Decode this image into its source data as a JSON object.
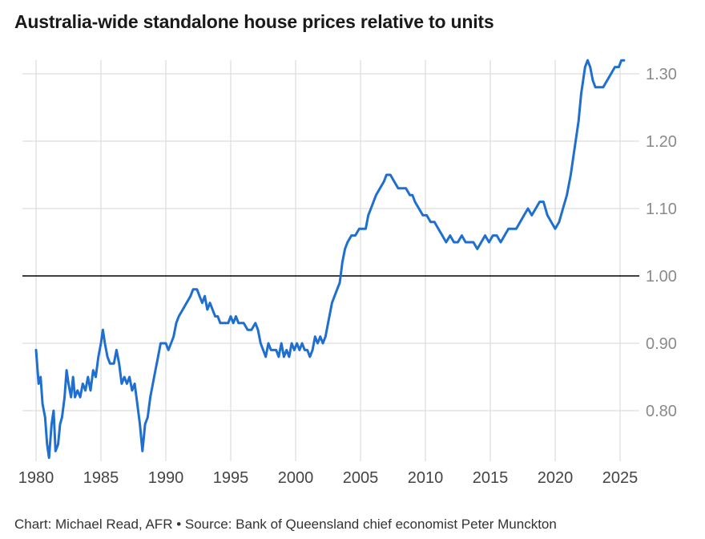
{
  "title": "Australia-wide standalone house prices relative to units",
  "footer": "Chart: Michael Read, AFR • Source: Bank of Queensland chief economist Peter Munckton",
  "colors": {
    "line": "#1e6fd0",
    "grid": "#dddddd",
    "reference": "#000000"
  },
  "chart_data": {
    "type": "line",
    "title": "Australia-wide standalone house prices relative to units",
    "xlim": [
      1979.5,
      2026.5
    ],
    "ylim": [
      0.73,
      1.335
    ],
    "x_ticks": [
      1980,
      1985,
      1990,
      1995,
      2000,
      2005,
      2010,
      2015,
      2020,
      2025
    ],
    "x_tick_labels": [
      "1980",
      "1985",
      "1990",
      "1995",
      "2000",
      "2005",
      "2010",
      "2015",
      "2020",
      "2025"
    ],
    "y_ticks": [
      0.8,
      0.9,
      1.0,
      1.1,
      1.2,
      1.3
    ],
    "y_tick_labels": [
      "0.80",
      "0.90",
      "1.00",
      "1.10",
      "1.20",
      "1.30"
    ],
    "reference_line": 1.0,
    "grid": true,
    "y_axis_position": "right",
    "series": [
      {
        "values": [
          [
            1980.0,
            0.89
          ],
          [
            1980.2,
            0.84
          ],
          [
            1980.35,
            0.85
          ],
          [
            1980.5,
            0.81
          ],
          [
            1980.7,
            0.79
          ],
          [
            1980.85,
            0.75
          ],
          [
            1981.0,
            0.73
          ],
          [
            1981.2,
            0.78
          ],
          [
            1981.35,
            0.8
          ],
          [
            1981.5,
            0.74
          ],
          [
            1981.7,
            0.75
          ],
          [
            1981.85,
            0.78
          ],
          [
            1982.0,
            0.79
          ],
          [
            1982.2,
            0.82
          ],
          [
            1982.35,
            0.86
          ],
          [
            1982.5,
            0.84
          ],
          [
            1982.7,
            0.82
          ],
          [
            1982.85,
            0.85
          ],
          [
            1983.0,
            0.82
          ],
          [
            1983.2,
            0.83
          ],
          [
            1983.4,
            0.82
          ],
          [
            1983.6,
            0.84
          ],
          [
            1983.8,
            0.83
          ],
          [
            1984.0,
            0.85
          ],
          [
            1984.2,
            0.83
          ],
          [
            1984.4,
            0.86
          ],
          [
            1984.6,
            0.85
          ],
          [
            1984.8,
            0.88
          ],
          [
            1985.0,
            0.9
          ],
          [
            1985.15,
            0.92
          ],
          [
            1985.3,
            0.9
          ],
          [
            1985.5,
            0.88
          ],
          [
            1985.7,
            0.87
          ],
          [
            1986.0,
            0.87
          ],
          [
            1986.2,
            0.89
          ],
          [
            1986.4,
            0.87
          ],
          [
            1986.6,
            0.84
          ],
          [
            1986.8,
            0.85
          ],
          [
            1987.0,
            0.84
          ],
          [
            1987.2,
            0.85
          ],
          [
            1987.4,
            0.83
          ],
          [
            1987.6,
            0.84
          ],
          [
            1987.8,
            0.81
          ],
          [
            1988.0,
            0.78
          ],
          [
            1988.2,
            0.74
          ],
          [
            1988.4,
            0.78
          ],
          [
            1988.6,
            0.79
          ],
          [
            1988.8,
            0.82
          ],
          [
            1989.0,
            0.84
          ],
          [
            1989.2,
            0.86
          ],
          [
            1989.4,
            0.88
          ],
          [
            1989.6,
            0.9
          ],
          [
            1989.8,
            0.9
          ],
          [
            1990.0,
            0.9
          ],
          [
            1990.2,
            0.89
          ],
          [
            1990.4,
            0.9
          ],
          [
            1990.6,
            0.91
          ],
          [
            1990.8,
            0.93
          ],
          [
            1991.0,
            0.94
          ],
          [
            1991.3,
            0.95
          ],
          [
            1991.6,
            0.96
          ],
          [
            1991.9,
            0.97
          ],
          [
            1992.1,
            0.98
          ],
          [
            1992.4,
            0.98
          ],
          [
            1992.6,
            0.97
          ],
          [
            1992.8,
            0.96
          ],
          [
            1993.0,
            0.97
          ],
          [
            1993.2,
            0.95
          ],
          [
            1993.4,
            0.96
          ],
          [
            1993.6,
            0.95
          ],
          [
            1993.8,
            0.94
          ],
          [
            1994.0,
            0.94
          ],
          [
            1994.2,
            0.93
          ],
          [
            1994.5,
            0.93
          ],
          [
            1994.8,
            0.93
          ],
          [
            1995.0,
            0.94
          ],
          [
            1995.2,
            0.93
          ],
          [
            1995.4,
            0.94
          ],
          [
            1995.6,
            0.93
          ],
          [
            1995.8,
            0.93
          ],
          [
            1996.0,
            0.93
          ],
          [
            1996.3,
            0.92
          ],
          [
            1996.6,
            0.92
          ],
          [
            1996.9,
            0.93
          ],
          [
            1997.1,
            0.92
          ],
          [
            1997.3,
            0.9
          ],
          [
            1997.5,
            0.89
          ],
          [
            1997.7,
            0.88
          ],
          [
            1997.9,
            0.9
          ],
          [
            1998.1,
            0.89
          ],
          [
            1998.3,
            0.89
          ],
          [
            1998.5,
            0.89
          ],
          [
            1998.7,
            0.88
          ],
          [
            1998.9,
            0.9
          ],
          [
            1999.1,
            0.88
          ],
          [
            1999.3,
            0.89
          ],
          [
            1999.5,
            0.88
          ],
          [
            1999.7,
            0.9
          ],
          [
            1999.9,
            0.89
          ],
          [
            2000.1,
            0.9
          ],
          [
            2000.3,
            0.89
          ],
          [
            2000.5,
            0.9
          ],
          [
            2000.7,
            0.89
          ],
          [
            2000.9,
            0.89
          ],
          [
            2001.1,
            0.88
          ],
          [
            2001.3,
            0.89
          ],
          [
            2001.5,
            0.91
          ],
          [
            2001.7,
            0.9
          ],
          [
            2001.9,
            0.91
          ],
          [
            2002.1,
            0.9
          ],
          [
            2002.3,
            0.91
          ],
          [
            2002.5,
            0.93
          ],
          [
            2002.8,
            0.96
          ],
          [
            2003.0,
            0.97
          ],
          [
            2003.2,
            0.98
          ],
          [
            2003.4,
            0.99
          ],
          [
            2003.6,
            1.02
          ],
          [
            2003.8,
            1.04
          ],
          [
            2004.0,
            1.05
          ],
          [
            2004.3,
            1.06
          ],
          [
            2004.6,
            1.06
          ],
          [
            2004.9,
            1.07
          ],
          [
            2005.2,
            1.07
          ],
          [
            2005.4,
            1.07
          ],
          [
            2005.6,
            1.09
          ],
          [
            2005.8,
            1.1
          ],
          [
            2006.0,
            1.11
          ],
          [
            2006.2,
            1.12
          ],
          [
            2006.5,
            1.13
          ],
          [
            2006.8,
            1.14
          ],
          [
            2007.0,
            1.15
          ],
          [
            2007.3,
            1.15
          ],
          [
            2007.6,
            1.14
          ],
          [
            2007.9,
            1.13
          ],
          [
            2008.2,
            1.13
          ],
          [
            2008.5,
            1.13
          ],
          [
            2008.8,
            1.12
          ],
          [
            2009.0,
            1.12
          ],
          [
            2009.2,
            1.11
          ],
          [
            2009.5,
            1.1
          ],
          [
            2009.8,
            1.09
          ],
          [
            2010.1,
            1.09
          ],
          [
            2010.4,
            1.08
          ],
          [
            2010.7,
            1.08
          ],
          [
            2011.0,
            1.07
          ],
          [
            2011.3,
            1.06
          ],
          [
            2011.6,
            1.05
          ],
          [
            2011.9,
            1.06
          ],
          [
            2012.2,
            1.05
          ],
          [
            2012.5,
            1.05
          ],
          [
            2012.8,
            1.06
          ],
          [
            2013.1,
            1.05
          ],
          [
            2013.4,
            1.05
          ],
          [
            2013.7,
            1.05
          ],
          [
            2014.0,
            1.04
          ],
          [
            2014.3,
            1.05
          ],
          [
            2014.6,
            1.06
          ],
          [
            2014.9,
            1.05
          ],
          [
            2015.2,
            1.06
          ],
          [
            2015.5,
            1.06
          ],
          [
            2015.8,
            1.05
          ],
          [
            2016.1,
            1.06
          ],
          [
            2016.4,
            1.07
          ],
          [
            2016.7,
            1.07
          ],
          [
            2017.0,
            1.07
          ],
          [
            2017.3,
            1.08
          ],
          [
            2017.6,
            1.09
          ],
          [
            2017.9,
            1.1
          ],
          [
            2018.2,
            1.09
          ],
          [
            2018.5,
            1.1
          ],
          [
            2018.8,
            1.11
          ],
          [
            2019.1,
            1.11
          ],
          [
            2019.4,
            1.09
          ],
          [
            2019.7,
            1.08
          ],
          [
            2020.0,
            1.07
          ],
          [
            2020.3,
            1.08
          ],
          [
            2020.6,
            1.1
          ],
          [
            2020.9,
            1.12
          ],
          [
            2021.2,
            1.15
          ],
          [
            2021.5,
            1.19
          ],
          [
            2021.8,
            1.23
          ],
          [
            2022.0,
            1.27
          ],
          [
            2022.3,
            1.31
          ],
          [
            2022.5,
            1.32
          ],
          [
            2022.7,
            1.31
          ],
          [
            2022.9,
            1.29
          ],
          [
            2023.1,
            1.28
          ],
          [
            2023.4,
            1.28
          ],
          [
            2023.7,
            1.28
          ],
          [
            2024.0,
            1.29
          ],
          [
            2024.3,
            1.3
          ],
          [
            2024.6,
            1.31
          ],
          [
            2024.9,
            1.31
          ],
          [
            2025.1,
            1.32
          ],
          [
            2025.3,
            1.32
          ]
        ]
      }
    ]
  }
}
